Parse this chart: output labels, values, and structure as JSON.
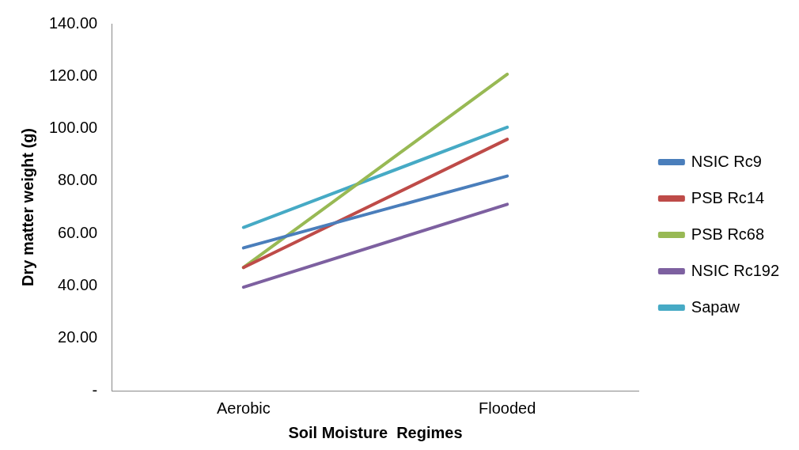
{
  "chart_data": {
    "type": "line",
    "xlabel": "Soil Moisture  Regimes",
    "ylabel": "Dry matter weight (g)",
    "categories": [
      "Aerobic",
      "Flooded"
    ],
    "series": [
      {
        "name": "NSIC Rc9",
        "color": "#4a7ebb",
        "values": [
          54.5,
          81.9
        ]
      },
      {
        "name": "PSB Rc14",
        "color": "#be4b48",
        "values": [
          47,
          95.9
        ]
      },
      {
        "name": "PSB Rc68",
        "color": "#98b954",
        "values": [
          47,
          120.7
        ]
      },
      {
        "name": "NSIC Rc192",
        "color": "#7d60a0",
        "values": [
          39.5,
          71.1
        ]
      },
      {
        "name": "Sapaw",
        "color": "#46aac5",
        "values": [
          62.3,
          100.5
        ]
      }
    ],
    "ylim": [
      0,
      140
    ],
    "yticks": [
      {
        "value": 0,
        "label": "-"
      },
      {
        "value": 20,
        "label": "20.00"
      },
      {
        "value": 40,
        "label": "40.00"
      },
      {
        "value": 60,
        "label": "60.00"
      },
      {
        "value": 80,
        "label": "80.00"
      },
      {
        "value": 100,
        "label": "100.00"
      },
      {
        "value": 120,
        "label": "120.00"
      },
      {
        "value": 140,
        "label": "140.00"
      }
    ],
    "grid": false,
    "legend": "right",
    "marker": "none",
    "line_style": "solid"
  }
}
